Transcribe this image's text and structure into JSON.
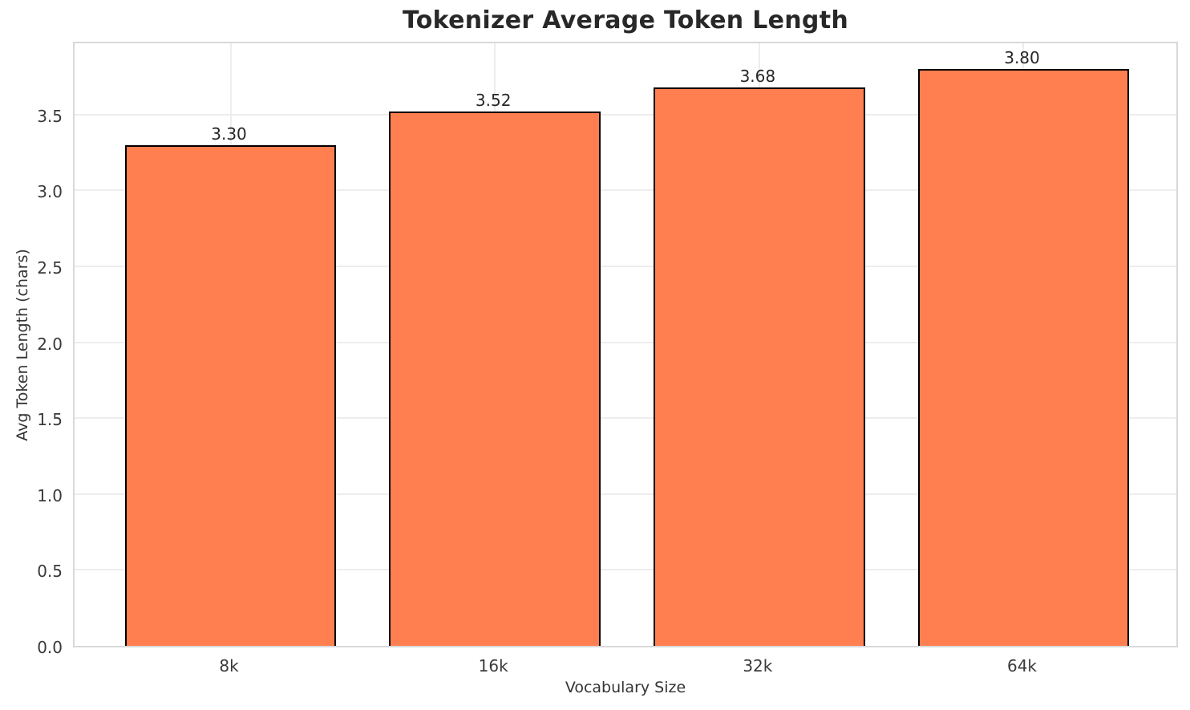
{
  "chart_data": {
    "type": "bar",
    "title": "Tokenizer Average Token Length",
    "xlabel": "Vocabulary Size",
    "ylabel": "Avg Token Length (chars)",
    "categories": [
      "8k",
      "16k",
      "32k",
      "64k"
    ],
    "values": [
      3.3,
      3.52,
      3.68,
      3.8
    ],
    "bar_labels": [
      "3.30",
      "3.52",
      "3.68",
      "3.80"
    ],
    "ylim": [
      0,
      3.99
    ],
    "yticks": [
      0.0,
      0.5,
      1.0,
      1.5,
      2.0,
      2.5,
      3.0,
      3.5
    ],
    "ytick_labels": [
      "0.0",
      "0.5",
      "1.0",
      "1.5",
      "2.0",
      "2.5",
      "3.0",
      "3.5"
    ],
    "grid": "both",
    "legend": "none",
    "bar_color": "#FF7F50",
    "bar_edge_color": "#000000",
    "background": "#FFFFFF"
  }
}
